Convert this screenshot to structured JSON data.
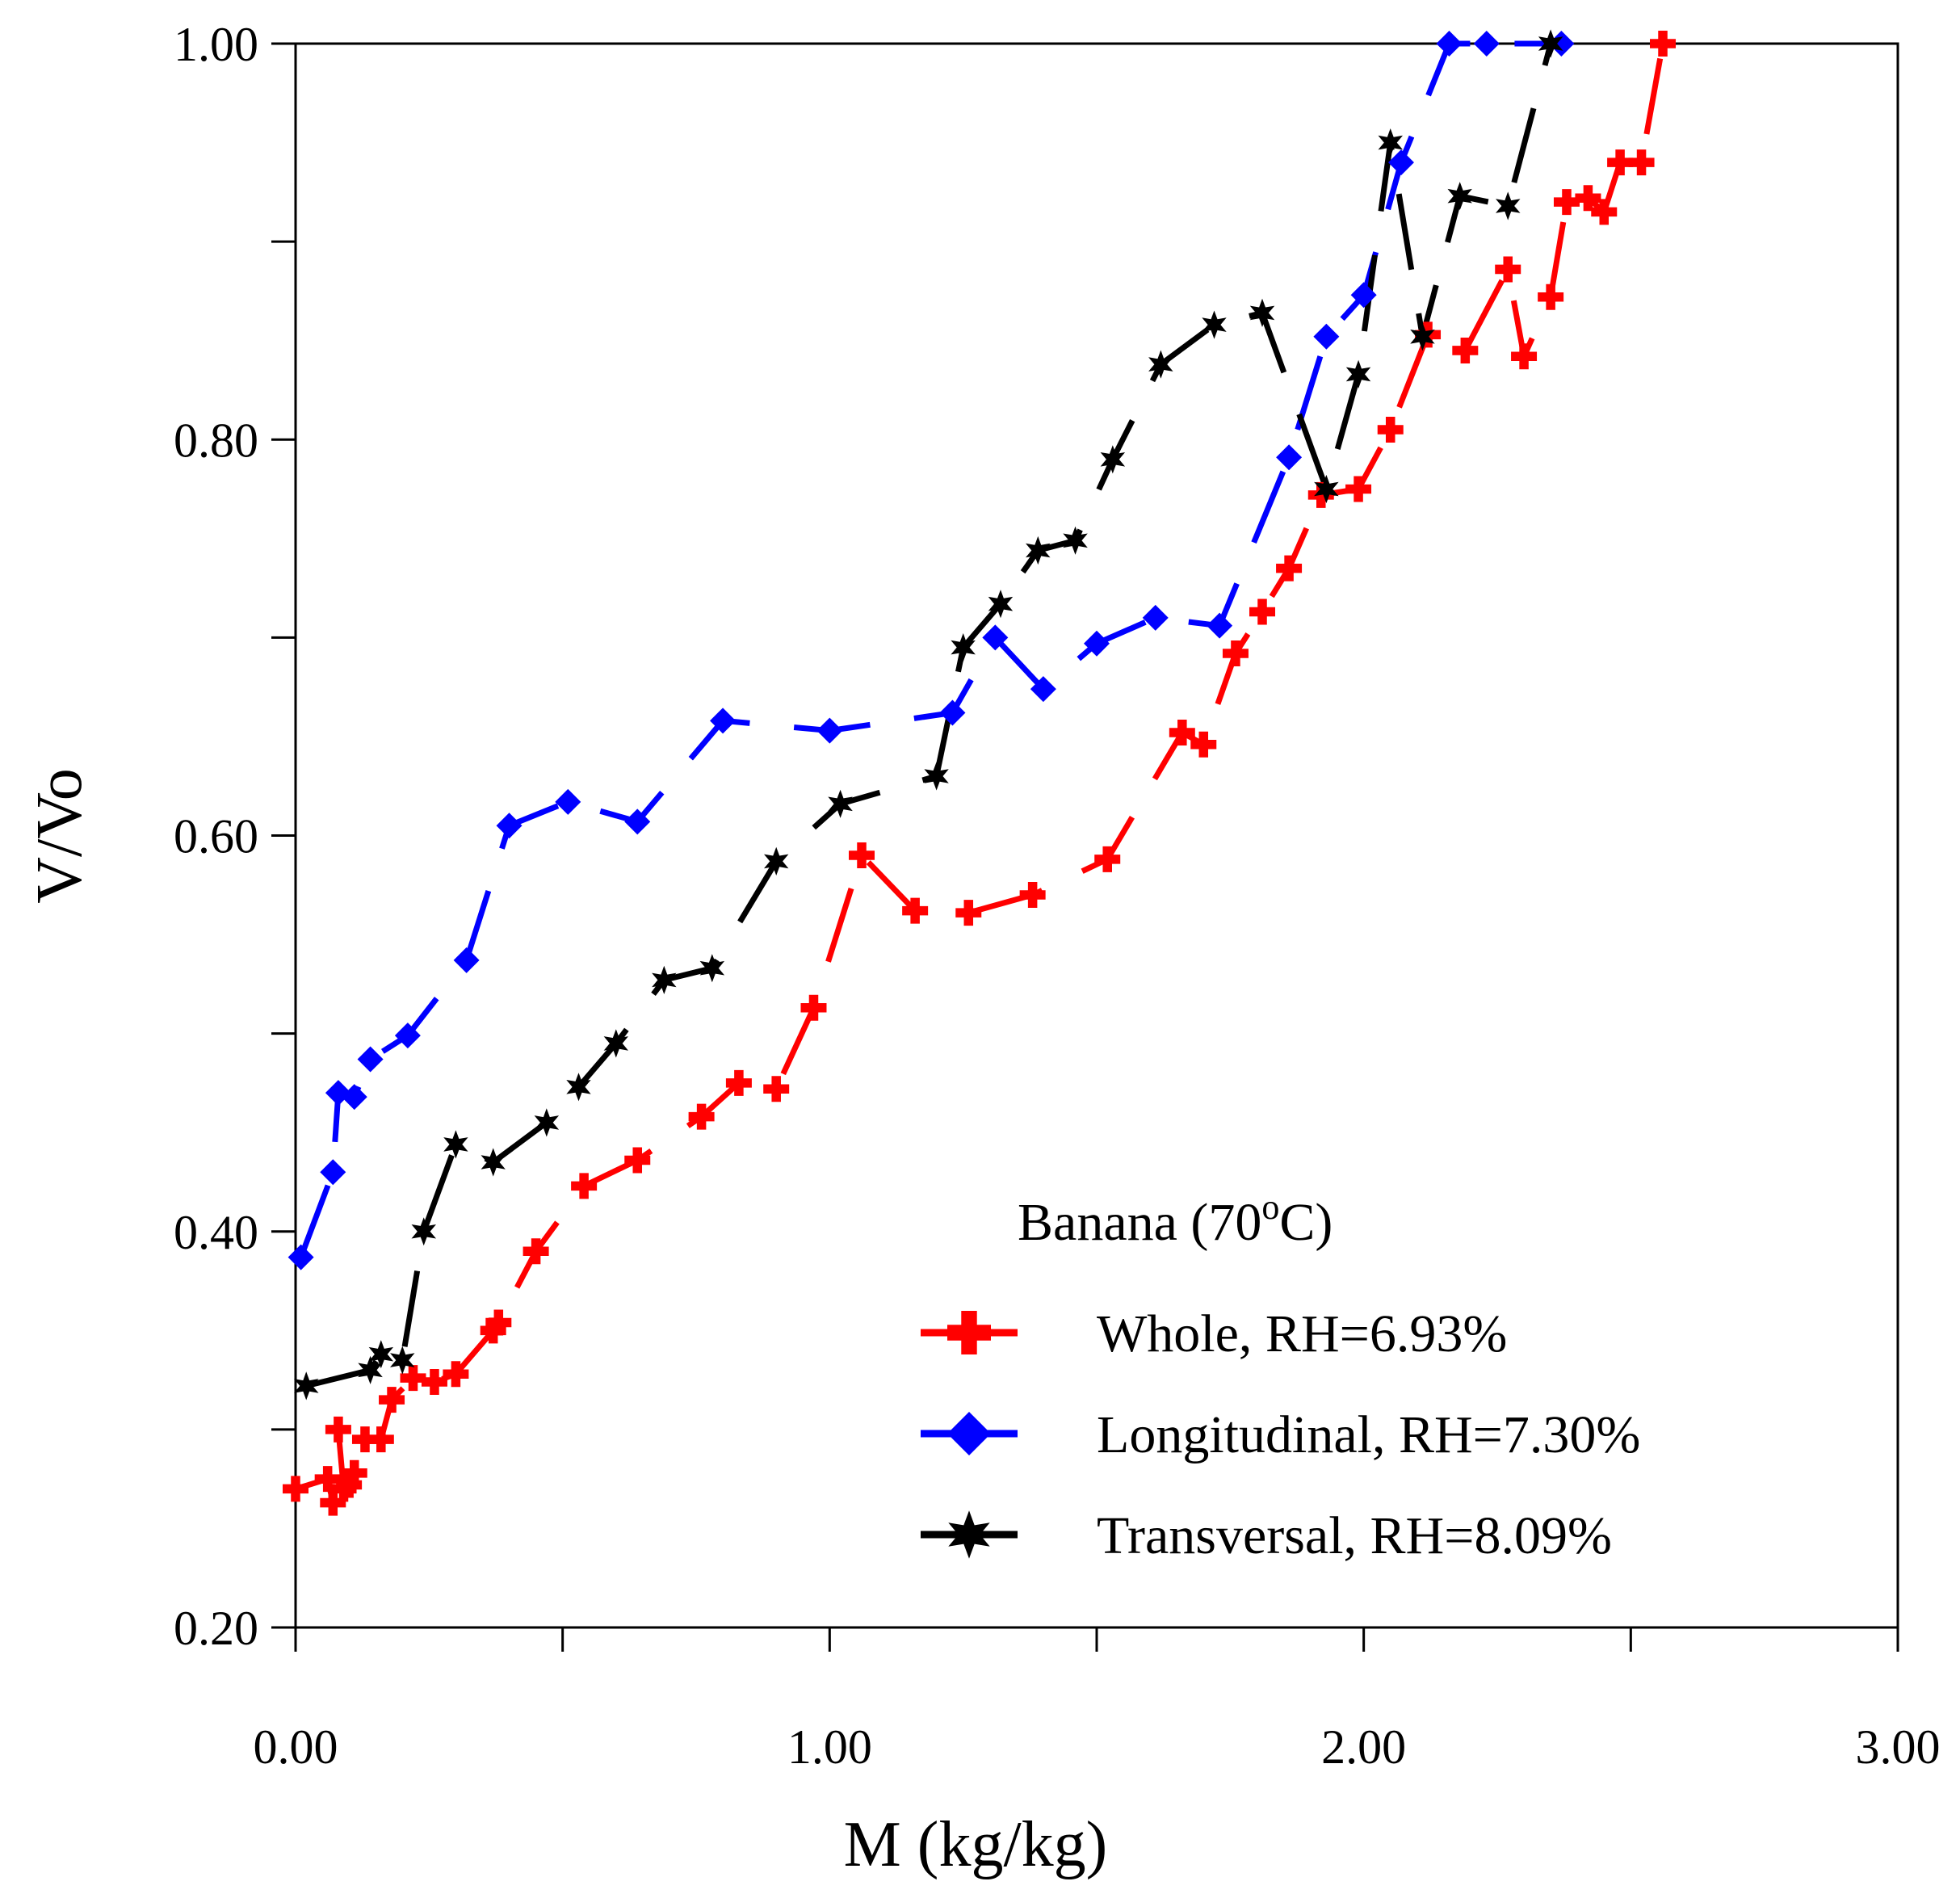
{
  "chart_data": {
    "type": "line",
    "title": "",
    "xlabel": "M (kg/kg)",
    "ylabel": "V/Vo",
    "xlim": [
      0,
      3
    ],
    "ylim": [
      0.2,
      1.0
    ],
    "x_ticks": [
      0,
      0.5,
      1,
      1.5,
      2,
      2.5,
      3
    ],
    "x_tick_labels": [
      {
        "value": 0,
        "label": "0.00"
      },
      {
        "value": 1,
        "label": "1.00"
      },
      {
        "value": 2,
        "label": "2.00"
      },
      {
        "value": 3,
        "label": "3.00"
      }
    ],
    "y_ticks": [
      0.2,
      0.3,
      0.4,
      0.5,
      0.6,
      0.7,
      0.8,
      0.9,
      1.0
    ],
    "y_tick_labels": [
      {
        "value": 0.2,
        "label": "0.20"
      },
      {
        "value": 0.4,
        "label": "0.40"
      },
      {
        "value": 0.6,
        "label": "0.60"
      },
      {
        "value": 0.8,
        "label": "0.80"
      },
      {
        "value": 1.0,
        "label": "1.00"
      }
    ],
    "grid": false,
    "legend": {
      "title_main": "Banana (70",
      "title_sup": "o",
      "title_end": "C)",
      "position": "bottom-right"
    },
    "series": [
      {
        "name": "Whole, RH=6.93%",
        "color": "#ff0000",
        "marker": "plus",
        "points": [
          [
            0.0,
            0.27
          ],
          [
            0.06,
            0.275
          ],
          [
            0.07,
            0.263
          ],
          [
            0.08,
            0.3
          ],
          [
            0.09,
            0.27
          ],
          [
            0.1,
            0.272
          ],
          [
            0.11,
            0.278
          ],
          [
            0.13,
            0.295
          ],
          [
            0.16,
            0.295
          ],
          [
            0.18,
            0.315
          ],
          [
            0.22,
            0.326
          ],
          [
            0.26,
            0.324
          ],
          [
            0.3,
            0.328
          ],
          [
            0.37,
            0.35
          ],
          [
            0.38,
            0.354
          ],
          [
            0.45,
            0.39
          ],
          [
            0.54,
            0.423
          ],
          [
            0.64,
            0.436
          ],
          [
            0.76,
            0.458
          ],
          [
            0.83,
            0.475
          ],
          [
            0.9,
            0.472
          ],
          [
            0.97,
            0.513
          ],
          [
            1.06,
            0.59
          ],
          [
            1.16,
            0.562
          ],
          [
            1.26,
            0.561
          ],
          [
            1.38,
            0.57
          ],
          [
            1.52,
            0.588
          ],
          [
            1.66,
            0.652
          ],
          [
            1.7,
            0.646
          ],
          [
            1.76,
            0.692
          ],
          [
            1.81,
            0.713
          ],
          [
            1.86,
            0.735
          ],
          [
            1.92,
            0.772
          ],
          [
            1.99,
            0.775
          ],
          [
            2.05,
            0.805
          ],
          [
            2.12,
            0.853
          ],
          [
            2.19,
            0.845
          ],
          [
            2.27,
            0.886
          ],
          [
            2.3,
            0.842
          ],
          [
            2.35,
            0.872
          ],
          [
            2.38,
            0.92
          ],
          [
            2.42,
            0.922
          ],
          [
            2.45,
            0.915
          ],
          [
            2.48,
            0.94
          ],
          [
            2.52,
            0.94
          ],
          [
            2.56,
            1.0
          ]
        ]
      },
      {
        "name": "Longitudinal, RH=7.30%",
        "color": "#0000ff",
        "marker": "diamond",
        "points": [
          [
            0.01,
            0.387
          ],
          [
            0.07,
            0.43
          ],
          [
            0.08,
            0.47
          ],
          [
            0.11,
            0.468
          ],
          [
            0.14,
            0.487
          ],
          [
            0.21,
            0.499
          ],
          [
            0.32,
            0.537
          ],
          [
            0.4,
            0.605
          ],
          [
            0.51,
            0.617
          ],
          [
            0.64,
            0.607
          ],
          [
            0.8,
            0.658
          ],
          [
            1.0,
            0.653
          ],
          [
            1.23,
            0.662
          ],
          [
            1.31,
            0.7
          ],
          [
            1.4,
            0.674
          ],
          [
            1.5,
            0.697
          ],
          [
            1.61,
            0.71
          ],
          [
            1.73,
            0.706
          ],
          [
            1.86,
            0.791
          ],
          [
            1.93,
            0.852
          ],
          [
            2.0,
            0.873
          ],
          [
            2.07,
            0.94
          ],
          [
            2.16,
            1.0
          ],
          [
            2.23,
            1.0
          ],
          [
            2.37,
            1.0
          ]
        ]
      },
      {
        "name": "Transversal, RH=8.09%",
        "color": "#000000",
        "marker": "star",
        "points": [
          [
            0.02,
            0.322
          ],
          [
            0.14,
            0.33
          ],
          [
            0.16,
            0.338
          ],
          [
            0.2,
            0.335
          ],
          [
            0.24,
            0.4
          ],
          [
            0.3,
            0.444
          ],
          [
            0.37,
            0.435
          ],
          [
            0.47,
            0.455
          ],
          [
            0.53,
            0.473
          ],
          [
            0.6,
            0.495
          ],
          [
            0.69,
            0.527
          ],
          [
            0.78,
            0.533
          ],
          [
            0.9,
            0.587
          ],
          [
            1.02,
            0.616
          ],
          [
            1.2,
            0.63
          ],
          [
            1.25,
            0.695
          ],
          [
            1.32,
            0.717
          ],
          [
            1.39,
            0.744
          ],
          [
            1.46,
            0.749
          ],
          [
            1.53,
            0.79
          ],
          [
            1.62,
            0.838
          ],
          [
            1.72,
            0.858
          ],
          [
            1.81,
            0.864
          ],
          [
            1.93,
            0.775
          ],
          [
            1.99,
            0.833
          ],
          [
            2.05,
            0.95
          ],
          [
            2.11,
            0.852
          ],
          [
            2.18,
            0.923
          ],
          [
            2.27,
            0.918
          ],
          [
            2.35,
            1.0
          ]
        ]
      }
    ]
  }
}
